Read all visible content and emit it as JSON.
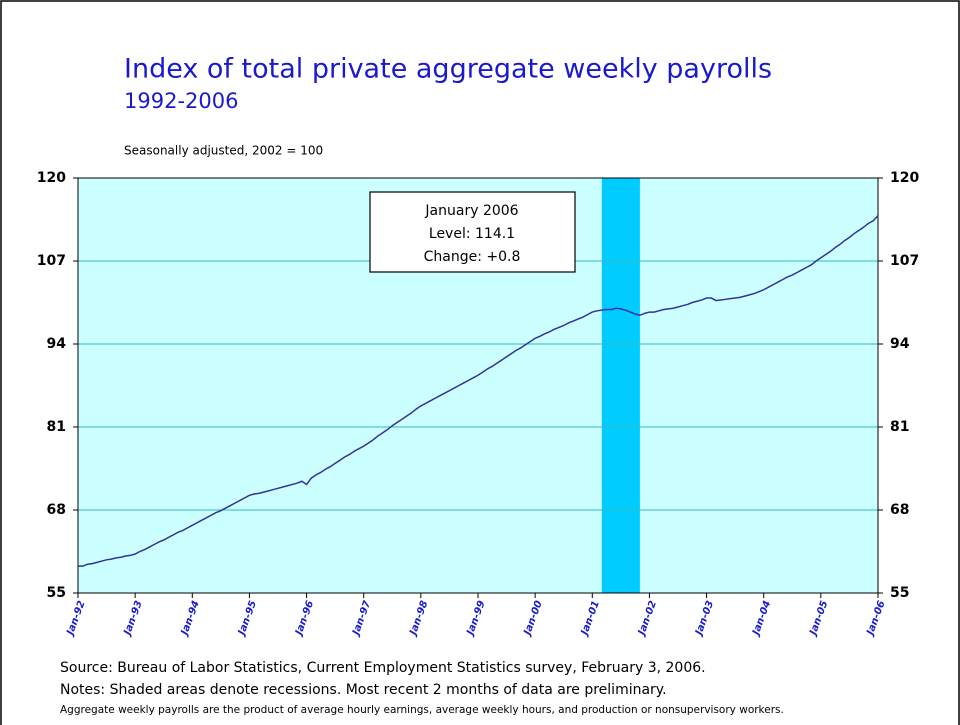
{
  "chart_data": {
    "type": "line",
    "title": "Index of total private aggregate weekly payrolls",
    "subtitle": "1992-2006",
    "y_label": "Seasonally adjusted,  2002 = 100",
    "annotation": [
      "January 2006",
      "Level: 114.1",
      "Change: +0.8"
    ],
    "source": "Source:  Bureau of Labor Statistics, Current Employment Statistics survey, February 3, 2006.",
    "notes": "Notes:  Shaded areas denote recessions.  Most recent 2 months of data are preliminary.",
    "footnote": "Aggregate weekly payrolls are the product of average hourly earnings, average weekly hours, and production or nonsupervisory workers.",
    "categories": [
      "Jan-92",
      null,
      null,
      null,
      null,
      null,
      null,
      null,
      null,
      null,
      null,
      null,
      "Jan-93",
      null,
      null,
      null,
      null,
      null,
      null,
      null,
      null,
      null,
      null,
      null,
      "Jan-94",
      null,
      null,
      null,
      null,
      null,
      null,
      null,
      null,
      null,
      null,
      null,
      "Jan-95",
      null,
      null,
      null,
      null,
      null,
      null,
      null,
      null,
      null,
      null,
      null,
      "Jan-96",
      null,
      null,
      null,
      null,
      null,
      null,
      null,
      null,
      null,
      null,
      null,
      "Jan-97",
      null,
      null,
      null,
      null,
      null,
      null,
      null,
      null,
      null,
      null,
      null,
      "Jan-98",
      null,
      null,
      null,
      null,
      null,
      null,
      null,
      null,
      null,
      null,
      null,
      "Jan-99",
      null,
      null,
      null,
      null,
      null,
      null,
      null,
      null,
      null,
      null,
      null,
      "Jan-00",
      null,
      null,
      null,
      null,
      null,
      null,
      null,
      null,
      null,
      null,
      null,
      "Jan-01",
      null,
      null,
      null,
      null,
      null,
      null,
      null,
      null,
      null,
      null,
      null,
      "Jan-02",
      null,
      null,
      null,
      null,
      null,
      null,
      null,
      null,
      null,
      null,
      null,
      "Jan-03",
      null,
      null,
      null,
      null,
      null,
      null,
      null,
      null,
      null,
      null,
      null,
      "Jan-04",
      null,
      null,
      null,
      null,
      null,
      null,
      null,
      null,
      null,
      null,
      null,
      "Jan-05",
      null,
      null,
      null,
      null,
      null,
      null,
      null,
      null,
      null,
      null,
      null,
      "Jan-06"
    ],
    "values": [
      59.2,
      59.2,
      59.5,
      59.6,
      59.8,
      60.0,
      60.2,
      60.3,
      60.5,
      60.6,
      60.8,
      60.9,
      61.1,
      61.5,
      61.8,
      62.2,
      62.6,
      63.0,
      63.3,
      63.7,
      64.1,
      64.5,
      64.8,
      65.2,
      65.6,
      66.0,
      66.4,
      66.8,
      67.2,
      67.6,
      67.9,
      68.3,
      68.7,
      69.1,
      69.5,
      69.9,
      70.3,
      70.5,
      70.6,
      70.8,
      71.0,
      71.2,
      71.4,
      71.6,
      71.8,
      72.0,
      72.2,
      72.5,
      72.0,
      73.0,
      73.5,
      73.9,
      74.4,
      74.8,
      75.3,
      75.8,
      76.3,
      76.7,
      77.2,
      77.6,
      78.0,
      78.5,
      79.0,
      79.6,
      80.1,
      80.6,
      81.2,
      81.7,
      82.2,
      82.7,
      83.2,
      83.8,
      84.3,
      84.7,
      85.1,
      85.5,
      85.9,
      86.3,
      86.7,
      87.1,
      87.5,
      87.9,
      88.3,
      88.7,
      89.1,
      89.6,
      90.1,
      90.5,
      91.0,
      91.5,
      92.0,
      92.5,
      93.0,
      93.4,
      93.9,
      94.4,
      94.9,
      95.2,
      95.6,
      95.9,
      96.3,
      96.6,
      96.9,
      97.3,
      97.6,
      97.9,
      98.2,
      98.6,
      99.0,
      99.2,
      99.3,
      99.4,
      99.4,
      99.6,
      99.5,
      99.3,
      99.0,
      98.7,
      98.5,
      98.8,
      99.0,
      99.0,
      99.2,
      99.4,
      99.5,
      99.6,
      99.8,
      100.0,
      100.2,
      100.5,
      100.7,
      100.9,
      101.2,
      101.2,
      100.8,
      100.9,
      101.0,
      101.1,
      101.2,
      101.3,
      101.5,
      101.7,
      101.9,
      102.2,
      102.5,
      102.9,
      103.3,
      103.7,
      104.1,
      104.5,
      104.8,
      105.2,
      105.6,
      106.0,
      106.4,
      107.0,
      107.5,
      108.0,
      108.5,
      109.1,
      109.6,
      110.2,
      110.7,
      111.3,
      111.8,
      112.3,
      112.9,
      113.3,
      114.1
    ],
    "color": "#333399",
    "recessions": [
      {
        "start": 110,
        "end": 118,
        "color": "#00ccff"
      }
    ],
    "ylim": [
      55,
      120
    ],
    "yticks": [
      55,
      68,
      81,
      94,
      107,
      120
    ],
    "y2lim": [
      55,
      120
    ],
    "y2ticks": [
      55,
      68,
      81,
      94,
      107,
      120
    ],
    "grid": true
  }
}
